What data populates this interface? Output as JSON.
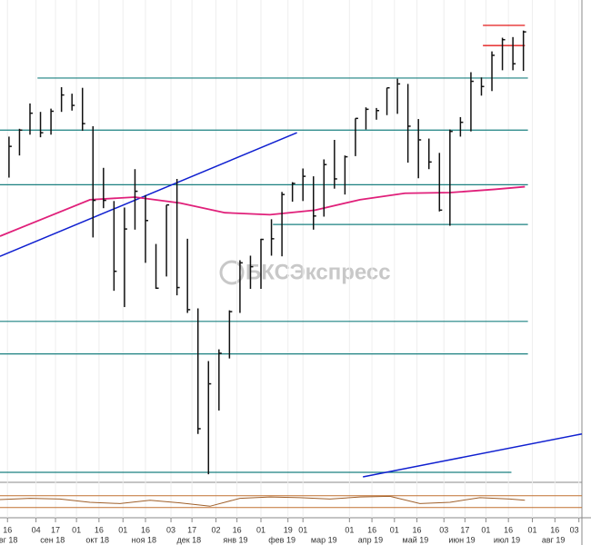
{
  "chart_data": {
    "type": "ohlc",
    "xlim": [
      10,
      398
    ],
    "ylim": [
      2335,
      3075
    ],
    "bar_color": "#111111",
    "x": [
      16,
      23,
      30,
      37,
      44,
      51,
      58,
      65,
      72,
      79,
      86,
      93,
      100,
      107,
      114,
      121,
      128,
      135,
      142,
      149,
      156,
      163,
      170,
      177,
      184,
      191,
      198,
      205,
      212,
      219,
      226,
      233,
      240,
      247,
      254,
      261,
      268,
      275,
      282,
      289,
      296,
      303,
      310,
      317,
      324,
      331,
      338,
      345,
      352,
      359
    ],
    "high": [
      2865,
      2877,
      2916,
      2903,
      2908,
      2941,
      2931,
      2940,
      2881,
      2817,
      2766,
      2756,
      2815,
      2775,
      2700,
      2760,
      2800,
      2708,
      2601,
      2520,
      2538,
      2598,
      2675,
      2682,
      2708,
      2738,
      2780,
      2795,
      2816,
      2804,
      2830,
      2860,
      2836,
      2893,
      2910,
      2909,
      2940,
      2954,
      2946,
      2892,
      2862,
      2840,
      2876,
      2895,
      2964,
      2956,
      2996,
      3017,
      3018,
      3028
    ],
    "low": [
      2802,
      2836,
      2868,
      2864,
      2868,
      2903,
      2905,
      2874,
      2710,
      2755,
      2628,
      2603,
      2722,
      2671,
      2631,
      2650,
      2621,
      2594,
      2408,
      2346,
      2444,
      2524,
      2594,
      2631,
      2631,
      2682,
      2681,
      2765,
      2766,
      2722,
      2742,
      2785,
      2776,
      2835,
      2876,
      2891,
      2898,
      2900,
      2825,
      2801,
      2815,
      2750,
      2728,
      2865,
      2873,
      2928,
      2935,
      2967,
      2967,
      2966
    ],
    "close": [
      2850,
      2875,
      2901,
      2871,
      2904,
      2929,
      2913,
      2885,
      2767,
      2767,
      2658,
      2723,
      2781,
      2736,
      2632,
      2760,
      2633,
      2599,
      2416,
      2485,
      2532,
      2596,
      2671,
      2665,
      2707,
      2708,
      2776,
      2793,
      2804,
      2743,
      2822,
      2800,
      2834,
      2893,
      2907,
      2905,
      2940,
      2946,
      2881,
      2860,
      2826,
      2752,
      2873,
      2887,
      2950,
      2942,
      2990,
      3014,
      2977,
      3026
    ],
    "ma": {
      "color": "#e0207a",
      "x": [
        10,
        40,
        70,
        100,
        130,
        160,
        190,
        220,
        250,
        280,
        310,
        340,
        360
      ],
      "values": [
        2712,
        2740,
        2768,
        2772,
        2763,
        2748,
        2745,
        2752,
        2768,
        2778,
        2779,
        2784,
        2788
      ]
    },
    "levels": [
      {
        "value": 2955,
        "from": 35,
        "to": 362,
        "color": "#1a8080"
      },
      {
        "value": 2875,
        "from": 10,
        "to": 362,
        "color": "#1a8080"
      },
      {
        "value": 2791,
        "from": 10,
        "to": 362,
        "color": "#1a8080"
      },
      {
        "value": 2730,
        "from": 192,
        "to": 362,
        "color": "#1a8080"
      },
      {
        "value": 2581,
        "from": 10,
        "to": 362,
        "color": "#1a8080"
      },
      {
        "value": 2531,
        "from": 10,
        "to": 362,
        "color": "#1a8080"
      },
      {
        "value": 2349,
        "from": 10,
        "to": 351,
        "color": "#1a8080"
      },
      {
        "value": 3036,
        "from": 332,
        "to": 360,
        "color": "#e00000"
      },
      {
        "value": 3005,
        "from": 332,
        "to": 360,
        "color": "#e00000"
      }
    ],
    "trendlines": [
      {
        "x": [
          10,
          208
        ],
        "values": [
          2681,
          2871
        ],
        "color": "#1020d0"
      },
      {
        "x": [
          252,
          398
        ],
        "values": [
          2342,
          2408
        ],
        "color": "#1020d0"
      }
    ],
    "oscillator": {
      "color": "#a0602a",
      "ylim": [
        -100,
        100
      ],
      "levels": [
        40,
        -50
      ],
      "level_color": "#c07030",
      "x": [
        10,
        30,
        50,
        70,
        90,
        110,
        130,
        150,
        170,
        190,
        210,
        230,
        250,
        270,
        290,
        310,
        330,
        350,
        360
      ],
      "values": [
        10,
        20,
        15,
        -10,
        -20,
        5,
        -15,
        -40,
        20,
        30,
        25,
        15,
        30,
        35,
        -20,
        -10,
        25,
        15,
        5
      ]
    },
    "xticks": [
      {
        "value": 15,
        "label": "16"
      },
      {
        "value": 34,
        "label": "04"
      },
      {
        "value": 47,
        "label": "17"
      },
      {
        "value": 61,
        "label": "01"
      },
      {
        "value": 76,
        "label": "16"
      },
      {
        "value": 92,
        "label": "01"
      },
      {
        "value": 107,
        "label": "16"
      },
      {
        "value": 124,
        "label": "03"
      },
      {
        "value": 138,
        "label": "17"
      },
      {
        "value": 154,
        "label": "02"
      },
      {
        "value": 168,
        "label": "16"
      },
      {
        "value": 184,
        "label": "01"
      },
      {
        "value": 202,
        "label": "19"
      },
      {
        "value": 212,
        "label": "01"
      },
      {
        "value": 243,
        "label": "01"
      },
      {
        "value": 258,
        "label": "16"
      },
      {
        "value": 273,
        "label": "01"
      },
      {
        "value": 288,
        "label": "16"
      },
      {
        "value": 306,
        "label": "03"
      },
      {
        "value": 320,
        "label": "17"
      },
      {
        "value": 334,
        "label": "01"
      },
      {
        "value": 349,
        "label": "16"
      },
      {
        "value": 365,
        "label": "01"
      },
      {
        "value": 380,
        "label": "16"
      },
      {
        "value": 396,
        "label": "03"
      }
    ],
    "xmonths": [
      {
        "value": 14,
        "label": "авг 18"
      },
      {
        "value": 45,
        "label": "сен 18"
      },
      {
        "value": 75,
        "label": "окт 18"
      },
      {
        "value": 106,
        "label": "ноя 18"
      },
      {
        "value": 136,
        "label": "дек 18"
      },
      {
        "value": 167,
        "label": "янв 19"
      },
      {
        "value": 198,
        "label": "фев 19"
      },
      {
        "value": 226,
        "label": "мар 19"
      },
      {
        "value": 257,
        "label": "апр 19"
      },
      {
        "value": 287,
        "label": "май 19"
      },
      {
        "value": 318,
        "label": "июн 19"
      },
      {
        "value": 348,
        "label": "июл 19"
      },
      {
        "value": 379,
        "label": "авг 19"
      }
    ],
    "grid": true,
    "watermark": "БКСЭкспресс"
  }
}
